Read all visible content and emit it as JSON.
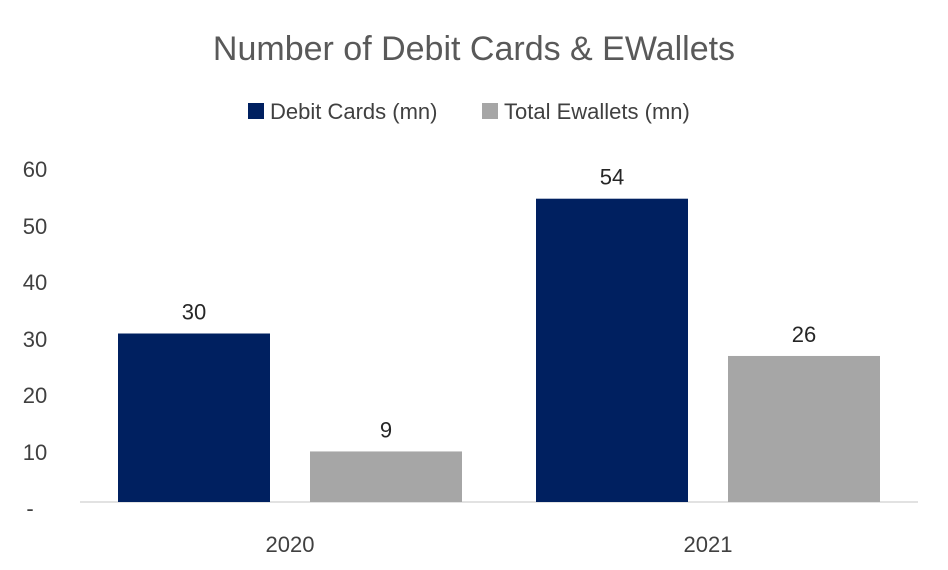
{
  "chart_data": {
    "type": "bar",
    "title": "Number of Debit Cards &  EWallets",
    "categories": [
      "2020",
      "2021"
    ],
    "series": [
      {
        "name": "Debit Cards (mn)",
        "values": [
          30,
          54
        ],
        "color": "#002060"
      },
      {
        "name": "Total Ewallets (mn)",
        "values": [
          9,
          26
        ],
        "color": "#A6A6A6"
      }
    ],
    "y_ticks": [
      "-",
      "10",
      "20",
      "30",
      "40",
      "50",
      "60"
    ],
    "ylim": [
      0,
      60
    ],
    "xlabel": "",
    "ylabel": "",
    "legend_position": "top",
    "grid": false
  }
}
